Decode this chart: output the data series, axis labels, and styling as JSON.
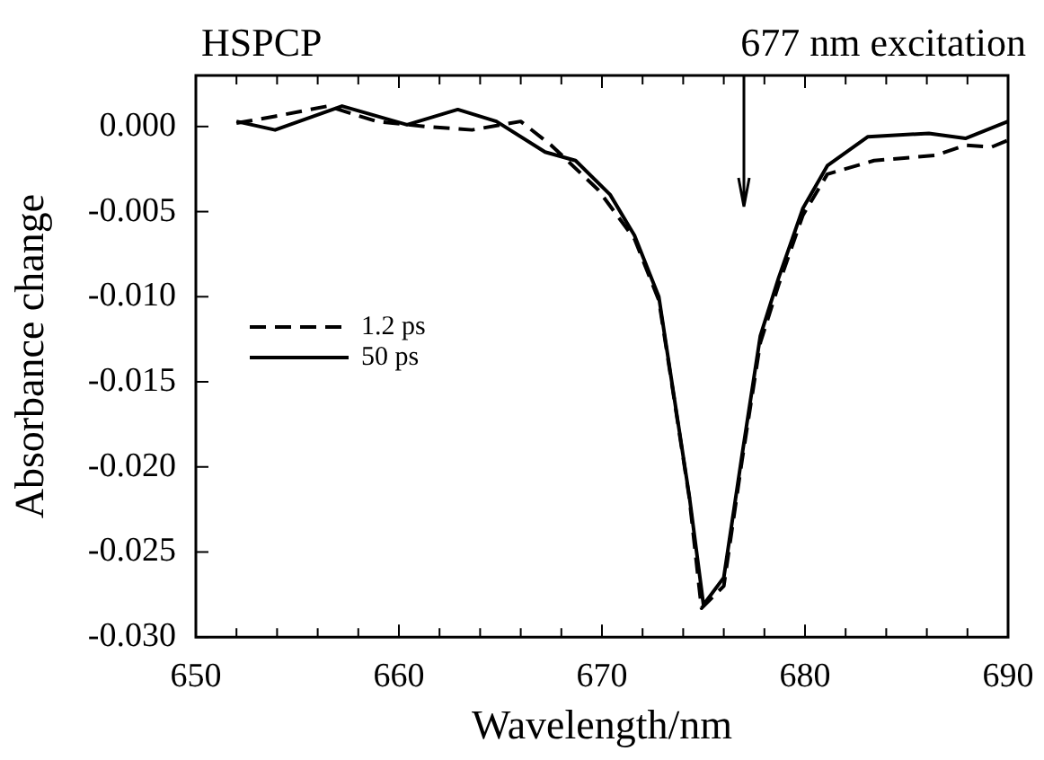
{
  "chart_data": {
    "type": "line",
    "title": "HSPCP",
    "xlabel": "Wavelength/nm",
    "ylabel": "Absorbance change",
    "xlim": [
      650,
      690
    ],
    "xticks": [
      650,
      {
        "value": 652,
        "label": null
      },
      {
        "value": 654,
        "label": null
      },
      {
        "value": 656,
        "label": null
      },
      {
        "value": 658,
        "label": null
      },
      660,
      {
        "value": 662,
        "label": null
      },
      {
        "value": 664,
        "label": null
      },
      {
        "value": 666,
        "label": null
      },
      {
        "value": 668,
        "label": null
      },
      670,
      {
        "value": 672,
        "label": null
      },
      {
        "value": 674,
        "label": null
      },
      {
        "value": 676,
        "label": null
      },
      {
        "value": 678,
        "label": null
      },
      680,
      {
        "value": 682,
        "label": null
      },
      {
        "value": 684,
        "label": null
      },
      {
        "value": 686,
        "label": null
      },
      {
        "value": 688,
        "label": null
      },
      690
    ],
    "ylim": [
      -0.03,
      0.003
    ],
    "yticks": [
      {
        "value": 0,
        "label": "0.000"
      },
      {
        "value": -0.005,
        "label": "-0.005"
      },
      {
        "value": -0.01,
        "label": "-0.010"
      },
      {
        "value": -0.015,
        "label": "-0.015"
      },
      {
        "value": -0.02,
        "label": "-0.020"
      },
      {
        "value": -0.025,
        "label": "-0.025"
      },
      {
        "value": -0.03,
        "label": "-0.030"
      }
    ],
    "grid": false,
    "legend": "left",
    "marker": "none",
    "annotations": [
      "677 nm excitation"
    ],
    "series": [
      {
        "name": "1.2 ps",
        "color": "#000000",
        "line_style": "dashed",
        "x": [
          652.0,
          653.9,
          656.5,
          658.9,
          661.3,
          663.6,
          666.0,
          667.5,
          669.8,
          671.6,
          672.8,
          673.4,
          674.3,
          674.9,
          676.0,
          676.9,
          677.8,
          678.7,
          679.9,
          681.1,
          683.4,
          686.4,
          687.9,
          689.2,
          690
        ],
        "values": [
          0.0002,
          0.0006,
          0.0012,
          0.0003,
          0.0,
          -0.0002,
          0.0003,
          -0.0011,
          -0.0037,
          -0.0066,
          -0.0102,
          -0.0148,
          -0.0218,
          -0.0283,
          -0.027,
          -0.0196,
          -0.0127,
          -0.0093,
          -0.0052,
          -0.0028,
          -0.002,
          -0.0017,
          -0.0011,
          -0.0012,
          -0.0008
        ]
      },
      {
        "name": "50 ps",
        "color": "#000000",
        "line_style": "solid",
        "x": [
          652.0,
          653.9,
          657.2,
          660.4,
          662.9,
          664.8,
          667.2,
          668.7,
          670.4,
          671.6,
          672.8,
          673.4,
          674.3,
          675.0,
          676.0,
          676.9,
          677.8,
          678.7,
          679.9,
          681.1,
          683.1,
          686.1,
          687.9,
          690
        ],
        "values": [
          0.0003,
          -0.0002,
          0.0012,
          0.0001,
          0.001,
          0.0003,
          -0.0015,
          -0.002,
          -0.004,
          -0.0064,
          -0.01,
          -0.0147,
          -0.0217,
          -0.0281,
          -0.0265,
          -0.0193,
          -0.0123,
          -0.0089,
          -0.0048,
          -0.0023,
          -0.0006,
          -0.0004,
          -0.0007,
          0.0003
        ]
      }
    ]
  }
}
